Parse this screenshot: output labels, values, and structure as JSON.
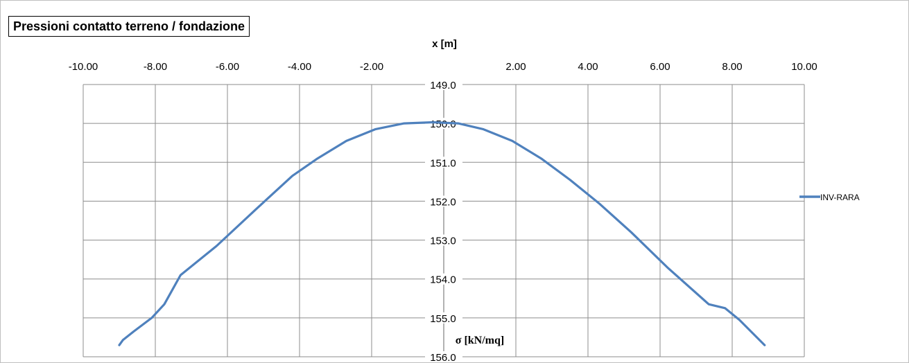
{
  "chart_data": {
    "type": "line",
    "title": "Pressioni contatto terreno / fondazione",
    "xlabel": "x [m]",
    "ylabel": "σ [kN/mq]",
    "xlim": [
      -10,
      10
    ],
    "ylim": [
      149,
      156
    ],
    "y_reversed": true,
    "x_ticks": [
      "-10.00",
      "-8.00",
      "-6.00",
      "-4.00",
      "-2.00",
      "0.00",
      "2.00",
      "4.00",
      "6.00",
      "8.00",
      "10.00"
    ],
    "y_ticks": [
      "149.0",
      "150.0",
      "151.0",
      "152.0",
      "153.0",
      "154.0",
      "155.0",
      "156.0"
    ],
    "grid": true,
    "legend_position": "right",
    "series": [
      {
        "name": "INV-RARA",
        "color": "#4f81bd",
        "x": [
          -9.0,
          -8.9,
          -8.6,
          -8.1,
          -7.75,
          -7.3,
          -6.3,
          -5.2,
          -4.2,
          -3.5,
          -2.7,
          -1.9,
          -1.1,
          -0.3,
          0.4,
          1.1,
          1.9,
          2.7,
          3.5,
          4.3,
          5.2,
          6.2,
          7.35,
          7.8,
          8.2,
          8.9
        ],
        "values": [
          155.7,
          155.57,
          155.35,
          155.0,
          154.65,
          153.9,
          153.15,
          152.2,
          151.35,
          150.9,
          150.45,
          150.15,
          150.0,
          149.97,
          150.0,
          150.15,
          150.45,
          150.9,
          151.45,
          152.05,
          152.8,
          153.7,
          154.65,
          154.75,
          155.05,
          155.7
        ]
      }
    ]
  }
}
